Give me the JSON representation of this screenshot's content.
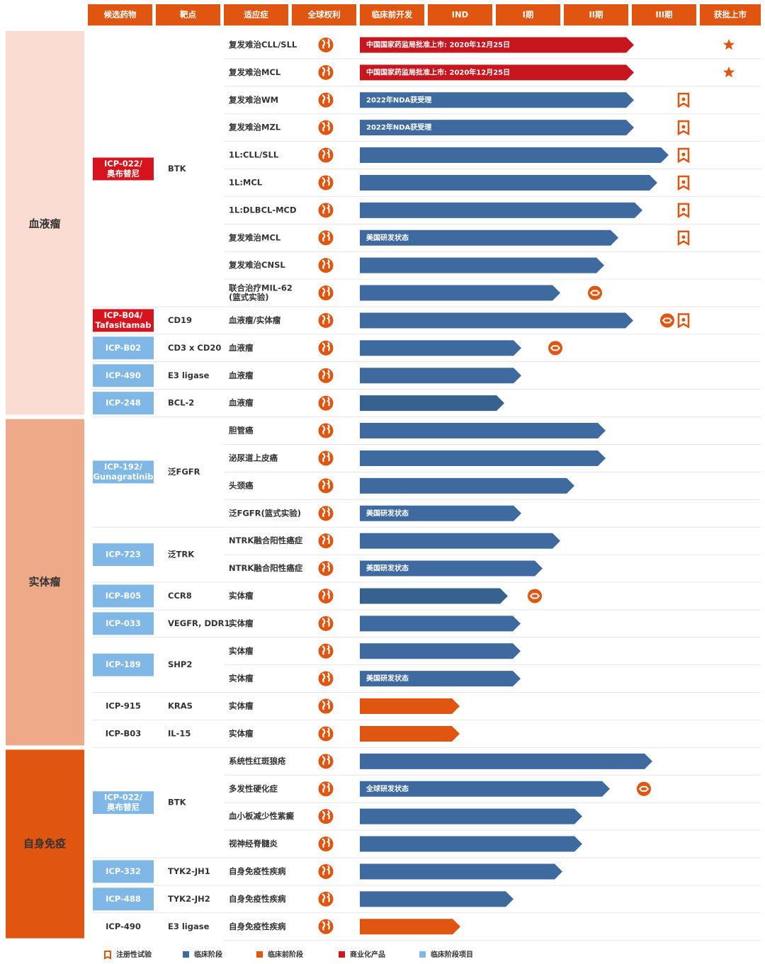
{
  "header": [
    "候选药物",
    "靶点",
    "适应症",
    "全球权利",
    "临床前开发",
    "IND",
    "I期",
    "II期",
    "III期",
    "获批上市"
  ],
  "groups": [
    {
      "name": "血液瘤",
      "color": "#fadcd2",
      "text_color": "#333333",
      "drugs": [
        {
          "name": [
            "ICP-022/",
            "奥布替尼"
          ],
          "box": "#d7141d",
          "target": "BTK",
          "rows": [
            {
              "indication": [
                "复发难治CLL/SLL"
              ],
              "color": "#c8161e",
              "label": "中国国家药监局批准上市: 2020年12月25日"
            },
            {
              "indication": [
                "复发难治MCL"
              ],
              "color": "#c8161e",
              "label": "中国国家药监局批准上市: 2020年12月25日"
            },
            {
              "indication": [
                "复发难治WM"
              ],
              "color": "#3f6aa0",
              "label": "2022年NDA获受理"
            },
            {
              "indication": [
                "复发难治MZL"
              ],
              "color": "#3f6aa0",
              "label": "2022年NDA获受理"
            },
            {
              "indication": [
                "1L:CLL/SLL"
              ],
              "color": "#3f6aa0"
            },
            {
              "indication": [
                "1L:MCL"
              ],
              "color": "#3f6aa0"
            },
            {
              "indication": [
                "1L:DLBCL-MCD"
              ],
              "color": "#3f6aa0"
            },
            {
              "indication": [
                "复发难治MCL"
              ],
              "color": "#3f6aa0",
              "label": "美国研发状态"
            },
            {
              "indication": [
                "复发难治CNSL"
              ],
              "color": "#3f6aa0"
            },
            {
              "indication": [
                "联合治疗MIL-62",
                "(篮式实验)"
              ],
              "color": "#3f6aa0"
            }
          ]
        },
        {
          "name": [
            "ICP-B04/",
            "Tafasitamab"
          ],
          "box": "#d7141d",
          "target": "CD19",
          "rows": [
            {
              "indication": [
                "血液瘤/实体瘤"
              ],
              "color": "#3f6aa0"
            }
          ]
        },
        {
          "name": [
            "ICP-B02"
          ],
          "box": "#7fb8e6",
          "target": "CD3 x CD20",
          "rows": [
            {
              "indication": [
                "血液瘤"
              ],
              "color": "#3f6aa0"
            }
          ]
        },
        {
          "name": [
            "ICP-490"
          ],
          "box": "#7fb8e6",
          "target": "E3 ligase",
          "rows": [
            {
              "indication": [
                "血液瘤"
              ],
              "color": "#3f6aa0"
            }
          ]
        },
        {
          "name": [
            "ICP-248"
          ],
          "box": "#7fb8e6",
          "target": "BCL-2",
          "rows": [
            {
              "indication": [
                "血液瘤"
              ],
              "color": "#37618f"
            }
          ]
        }
      ]
    },
    {
      "name": "实体瘤",
      "color": "#eeaa88",
      "text_color": "#333333",
      "drugs": [
        {
          "name": [
            "ICP-192/",
            "Gunagratinib"
          ],
          "box": "#7fb8e6",
          "target": "泛FGFR",
          "rows": [
            {
              "indication": [
                "胆管癌"
              ],
              "color": "#3f6aa0"
            },
            {
              "indication": [
                "泌尿道上皮癌"
              ],
              "color": "#3f6aa0"
            },
            {
              "indication": [
                "头颈癌"
              ],
              "color": "#3f6aa0"
            },
            {
              "indication": [
                "泛FGFR(篮式实验)"
              ],
              "color": "#3f6aa0",
              "label": "美国研发状态"
            }
          ]
        },
        {
          "name": [
            "ICP-723"
          ],
          "box": "#7fb8e6",
          "target": "泛TRK",
          "rows": [
            {
              "indication": [
                "NTRK融合阳性癌症"
              ],
              "color": "#3f6aa0"
            },
            {
              "indication": [
                "NTRK融合阳性癌症"
              ],
              "color": "#3f6aa0",
              "label": "美国研发状态"
            }
          ]
        },
        {
          "name": [
            "ICP-B05"
          ],
          "box": "#7fb8e6",
          "target": "CCR8",
          "rows": [
            {
              "indication": [
                "实体瘤"
              ],
              "color": "#37618f"
            }
          ]
        },
        {
          "name": [
            "ICP-033"
          ],
          "box": "#7fb8e6",
          "target": "VEGFR, DDR1",
          "rows": [
            {
              "indication": [
                "实体瘤"
              ],
              "color": "#3f6aa0"
            }
          ]
        },
        {
          "name": [
            "ICP-189"
          ],
          "box": "#7fb8e6",
          "target": "SHP2",
          "rows": [
            {
              "indication": [
                "实体瘤"
              ],
              "color": "#3f6aa0"
            },
            {
              "indication": [
                "实体瘤"
              ],
              "color": "#3f6aa0",
              "label": "美国研发状态"
            }
          ]
        },
        {
          "name": [
            "ICP-915"
          ],
          "target": "KRAS",
          "rows": [
            {
              "indication": [
                "实体瘤"
              ],
              "color": "#e05510"
            }
          ]
        },
        {
          "name": [
            "ICP-B03"
          ],
          "target": "IL-15",
          "rows": [
            {
              "indication": [
                "实体瘤"
              ],
              "color": "#e05510"
            }
          ]
        }
      ]
    },
    {
      "name": "自身免疫",
      "color": "#e05510",
      "text_color": "#333333",
      "drugs": [
        {
          "name": [
            "ICP-022/",
            "奥布替尼"
          ],
          "box": "#7fb8e6",
          "target": "BTK",
          "rows": [
            {
              "indication": [
                "系统性红斑狼疮"
              ],
              "color": "#3f6aa0"
            },
            {
              "indication": [
                "多发性硬化症"
              ],
              "color": "#3f6aa0",
              "label": "全球研发状态"
            },
            {
              "indication": [
                "血小板减少性紫癜"
              ],
              "color": "#3f6aa0"
            },
            {
              "indication": [
                "视神经脊髓炎"
              ],
              "color": "#3f6aa0"
            }
          ]
        },
        {
          "name": [
            "ICP-332"
          ],
          "box": "#7fb8e6",
          "target": "TYK2-JH1",
          "rows": [
            {
              "indication": [
                "自身免疫性疾病"
              ],
              "color": "#3f6aa0"
            }
          ]
        },
        {
          "name": [
            "ICP-488"
          ],
          "box": "#7fb8e6",
          "target": "TYK2-JH2",
          "rows": [
            {
              "indication": [
                "自身免疫性疾病"
              ],
              "color": "#3f6aa0"
            }
          ]
        },
        {
          "name": [
            "ICP-490"
          ],
          "target": "E3 ligase",
          "rows": [
            {
              "indication": [
                "自身免疫性疾病"
              ],
              "color": "#e05510"
            }
          ]
        }
      ]
    }
  ],
  "legend": [
    {
      "name": "注册性试验",
      "icon": "flag"
    },
    {
      "name": "临床阶段",
      "color": "#3f6aa0"
    },
    {
      "name": "临床前阶段",
      "color": "#e05510"
    },
    {
      "name": "商业化产品",
      "color": "#d7141d"
    },
    {
      "name": "临床阶段项目",
      "color": "#7fb8e6"
    }
  ]
}
